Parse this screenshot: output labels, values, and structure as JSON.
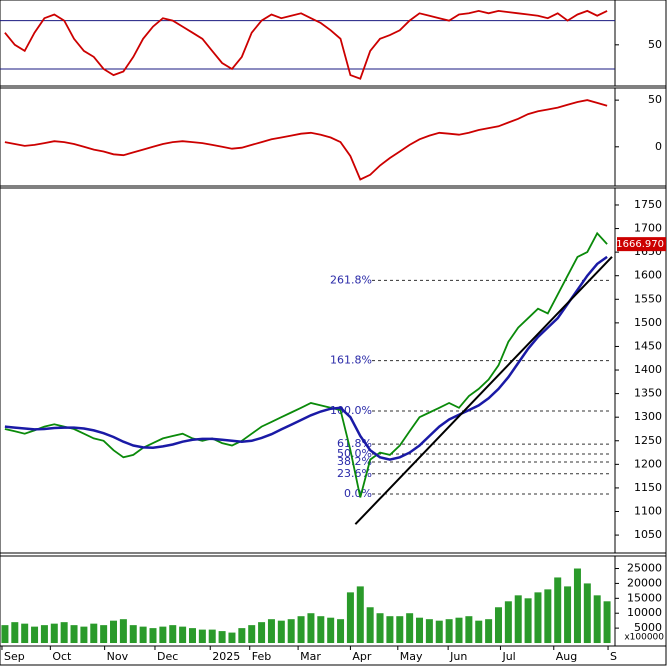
{
  "chart_data": [
    {
      "type": "line",
      "name": "rsi",
      "ylim": [
        16,
        87
      ],
      "yticks": [
        50
      ],
      "levels": [
        30,
        70
      ],
      "series": [
        {
          "color": "#cc0000",
          "values": [
            60,
            50,
            45,
            60,
            72,
            75,
            70,
            55,
            45,
            40,
            30,
            25,
            28,
            40,
            55,
            65,
            72,
            70,
            65,
            60,
            55,
            45,
            35,
            30,
            40,
            60,
            70,
            75,
            72,
            74,
            76,
            72,
            68,
            62,
            55,
            25,
            22,
            45,
            55,
            58,
            62,
            70,
            76,
            74,
            72,
            70,
            75,
            76,
            78,
            76,
            78,
            77,
            76,
            75,
            74,
            72,
            76,
            70,
            75,
            78,
            74,
            78
          ]
        }
      ]
    },
    {
      "type": "line",
      "name": "macd",
      "ylim": [
        -42,
        63
      ],
      "yticks": [
        0,
        50
      ],
      "series": [
        {
          "color": "#cc0000",
          "values": [
            5,
            3,
            1,
            2,
            4,
            6,
            5,
            3,
            0,
            -3,
            -5,
            -8,
            -9,
            -6,
            -3,
            0,
            3,
            5,
            6,
            5,
            4,
            2,
            0,
            -2,
            -1,
            2,
            5,
            8,
            10,
            12,
            14,
            15,
            13,
            10,
            5,
            -10,
            -35,
            -30,
            -20,
            -12,
            -5,
            2,
            8,
            12,
            15,
            14,
            13,
            15,
            18,
            20,
            22,
            26,
            30,
            35,
            38,
            40,
            42,
            45,
            48,
            50,
            47,
            44
          ]
        }
      ]
    },
    {
      "type": "line",
      "name": "price",
      "ylim": [
        1012,
        1786
      ],
      "yticks": [
        1050,
        1100,
        1150,
        1200,
        1250,
        1300,
        1350,
        1400,
        1450,
        1500,
        1550,
        1600,
        1650,
        1700,
        1750
      ],
      "series": [
        {
          "color": "#0a8a0a",
          "values": [
            1275,
            1270,
            1265,
            1272,
            1280,
            1285,
            1280,
            1275,
            1265,
            1255,
            1250,
            1230,
            1215,
            1220,
            1235,
            1245,
            1255,
            1260,
            1265,
            1255,
            1250,
            1255,
            1245,
            1240,
            1250,
            1265,
            1280,
            1290,
            1300,
            1310,
            1320,
            1330,
            1325,
            1320,
            1315,
            1230,
            1130,
            1210,
            1225,
            1220,
            1240,
            1270,
            1300,
            1310,
            1320,
            1330,
            1320,
            1345,
            1360,
            1380,
            1410,
            1460,
            1490,
            1510,
            1530,
            1520,
            1560,
            1600,
            1640,
            1650,
            1690,
            1667
          ]
        },
        {
          "color": "#1a1aa6",
          "values": [
            1280,
            1278,
            1276,
            1274,
            1275,
            1277,
            1278,
            1278,
            1276,
            1272,
            1266,
            1258,
            1248,
            1240,
            1236,
            1235,
            1238,
            1242,
            1248,
            1252,
            1254,
            1254,
            1252,
            1250,
            1248,
            1250,
            1256,
            1264,
            1274,
            1284,
            1294,
            1304,
            1312,
            1318,
            1320,
            1300,
            1260,
            1230,
            1215,
            1210,
            1215,
            1225,
            1240,
            1260,
            1280,
            1295,
            1305,
            1315,
            1325,
            1340,
            1360,
            1385,
            1415,
            1445,
            1470,
            1490,
            1510,
            1540,
            1570,
            1600,
            1625,
            1640
          ]
        }
      ],
      "trendline": {
        "x": [
          36,
          62
        ],
        "y": [
          1073,
          1640
        ]
      },
      "fib_levels": [
        {
          "value": 1137,
          "label": "0.0%"
        },
        {
          "value": 1180,
          "label": "23.6%"
        },
        {
          "value": 1205,
          "label": "38.2%"
        },
        {
          "value": 1222,
          "label": "50.0%"
        },
        {
          "value": 1243,
          "label": "61.8%"
        },
        {
          "value": 1313,
          "label": "100.0%"
        },
        {
          "value": 1420,
          "label": "161.8%"
        },
        {
          "value": 1590,
          "label": "261.8%"
        }
      ],
      "last_price": {
        "value": 1666.97,
        "label": "1666.970"
      }
    },
    {
      "type": "bar",
      "name": "volume",
      "ylim": [
        -1000,
        29200
      ],
      "yticks": [
        5000,
        10000,
        15000,
        20000,
        25000
      ],
      "unit_label": "x100000",
      "series": [
        {
          "color": "#2a9a2a",
          "values": [
            6000,
            7000,
            6500,
            5500,
            6000,
            6500,
            7000,
            6000,
            5500,
            6500,
            6000,
            7500,
            8000,
            6000,
            5500,
            5000,
            5500,
            6000,
            5500,
            5000,
            4500,
            4500,
            4000,
            3500,
            5000,
            6000,
            7000,
            8000,
            7500,
            8000,
            9000,
            10000,
            9000,
            8500,
            8000,
            17000,
            19000,
            12000,
            10000,
            9000,
            9000,
            10000,
            8500,
            8000,
            7500,
            8000,
            8500,
            9000,
            7500,
            8000,
            12000,
            14000,
            16000,
            15000,
            17000,
            18000,
            22000,
            19000,
            25000,
            20000,
            16000,
            14000
          ]
        }
      ],
      "xlim": [
        0,
        62
      ],
      "xticks": [
        {
          "value": 0.2,
          "label": "Sep"
        },
        {
          "value": 5.1,
          "label": "Oct"
        },
        {
          "value": 10.6,
          "label": "Nov"
        },
        {
          "value": 15.7,
          "label": "Dec"
        },
        {
          "value": 21.3,
          "label": "2025"
        },
        {
          "value": 25.3,
          "label": "Feb"
        },
        {
          "value": 30.2,
          "label": "Mar"
        },
        {
          "value": 35.5,
          "label": "Apr"
        },
        {
          "value": 40.3,
          "label": "May"
        },
        {
          "value": 45.4,
          "label": "Jun"
        },
        {
          "value": 50.7,
          "label": "Jul"
        },
        {
          "value": 56.1,
          "label": "Aug"
        },
        {
          "value": 61.6,
          "label": "S"
        }
      ]
    }
  ]
}
